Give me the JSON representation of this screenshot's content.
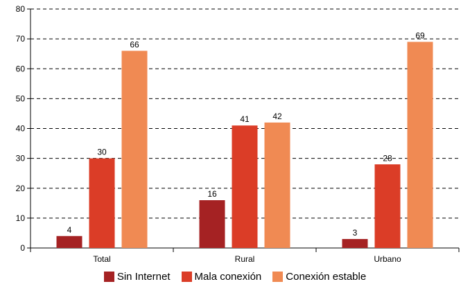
{
  "chart_data": {
    "type": "bar",
    "title": "",
    "xlabel": "",
    "ylabel": "",
    "ylim": [
      0,
      80
    ],
    "yticks": [
      0,
      10,
      20,
      30,
      40,
      50,
      60,
      70,
      80
    ],
    "grid": true,
    "legend_position": "bottom",
    "categories": [
      "Total",
      "Rural",
      "Urbano"
    ],
    "series": [
      {
        "name": "Sin Internet",
        "color": "#a52223",
        "values": [
          4,
          16,
          3
        ]
      },
      {
        "name": "Mala conexión",
        "color": "#db3d27",
        "values": [
          30,
          41,
          28
        ]
      },
      {
        "name": "Conexión estable",
        "color": "#f08a53",
        "values": [
          66,
          42,
          69
        ]
      }
    ]
  }
}
